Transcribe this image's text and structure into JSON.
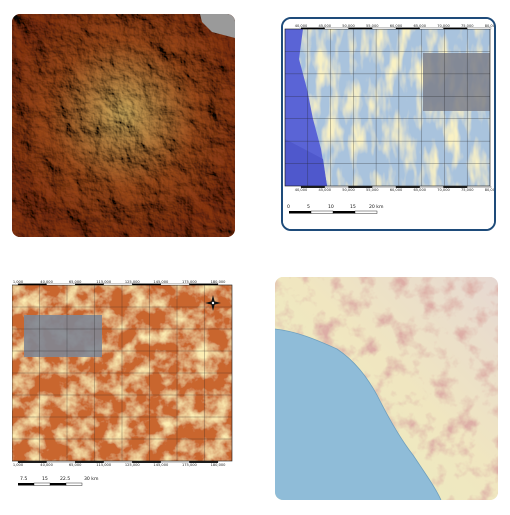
{
  "map2": {
    "top_ticks": [
      "40,000",
      "45,000",
      "50,000",
      "55,000",
      "60,000",
      "65,000",
      "70,000",
      "75,000",
      "80,000"
    ],
    "bottom_ticks": [
      "40,000",
      "45,000",
      "50,000",
      "55,000",
      "60,000",
      "65,000",
      "70,000",
      "75,000",
      "80,000"
    ],
    "scale_labels": [
      "0",
      "5",
      "10",
      "15",
      "20 km"
    ]
  },
  "map3": {
    "top_ticks": [
      "1,000",
      "40,000",
      "65,000",
      "115,000",
      "125,000",
      "145,000",
      "175,000",
      "180,000"
    ],
    "bottom_ticks": [
      "1,000",
      "40,000",
      "65,000",
      "115,000",
      "125,000",
      "145,000",
      "175,000",
      "180,000"
    ],
    "scale_labels": [
      "7.5",
      "15",
      "22.5",
      "30 km"
    ]
  },
  "colors": {
    "frame_blue": "#1e4b7a",
    "terrain_brown": "#8c3a1c",
    "sea_blue": "#8fbcd8",
    "water_blue": "#5a64d6"
  }
}
